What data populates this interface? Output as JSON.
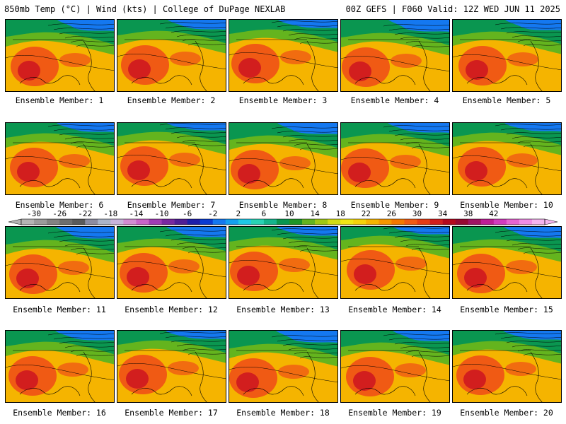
{
  "header": {
    "left": "850mb Temp (°C) | Wind (kts) | College of DuPage NEXLAB",
    "right": "00Z GEFS | F060 Valid: 12Z WED JUN 11 2025"
  },
  "panel_label_prefix": "Ensemble Member: ",
  "members": [
    1,
    2,
    3,
    4,
    5,
    6,
    7,
    8,
    9,
    10,
    11,
    12,
    13,
    14,
    15,
    16,
    17,
    18,
    19,
    20
  ],
  "colorbar": {
    "ticks": [
      "-30",
      "-26",
      "-22",
      "-18",
      "-14",
      "-10",
      "-6",
      "-2",
      "2",
      "6",
      "10",
      "14",
      "18",
      "22",
      "26",
      "30",
      "34",
      "38",
      "42"
    ],
    "colors": [
      "#b4b4b4",
      "#9b9b9b",
      "#828282",
      "#6e6e6e",
      "#5a5a5a",
      "#8c8ca0",
      "#aab4c8",
      "#c8b4dc",
      "#d28cd2",
      "#c864c8",
      "#a03cb4",
      "#7828a0",
      "#501e96",
      "#1e1eaa",
      "#0a3cd2",
      "#1478f0",
      "#14a0f0",
      "#1ec8e6",
      "#28d2b4",
      "#14b48c",
      "#0a9650",
      "#1e9628",
      "#64b41e",
      "#a0c814",
      "#d2dc14",
      "#f0e614",
      "#f5d20a",
      "#f5b400",
      "#f59600",
      "#f57800",
      "#f05a14",
      "#e63c14",
      "#d21e1e",
      "#b40a1e",
      "#960a32",
      "#a01464",
      "#be1e96",
      "#d23cbe",
      "#e664d2",
      "#f08ce6",
      "#f5b4f0"
    ]
  },
  "palette": {
    "cold": "#1478f0",
    "cool": "#0a9650",
    "mild": "#64b41e",
    "warm": "#f5b400",
    "hot": "#f05a14",
    "very_hot": "#d21e1e"
  }
}
